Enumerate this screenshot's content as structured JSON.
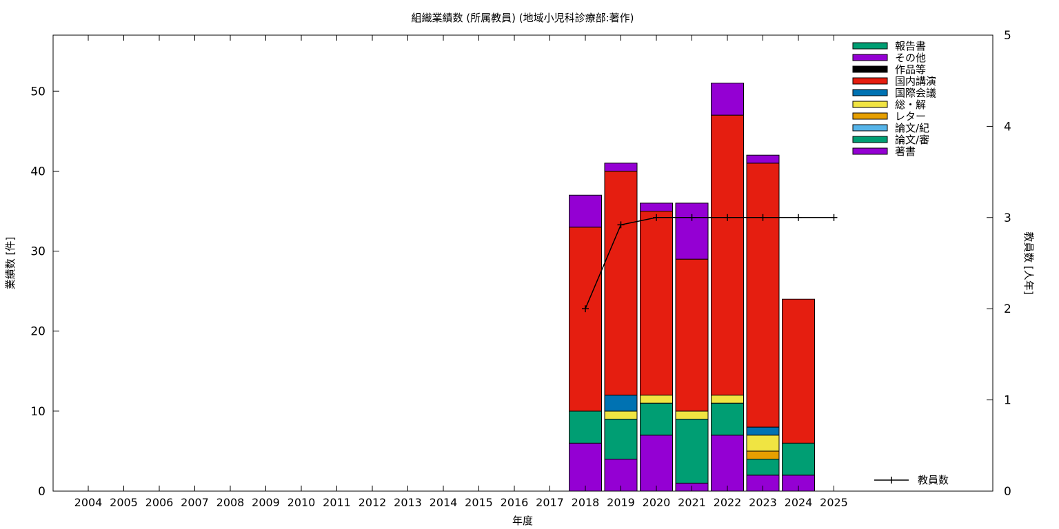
{
  "chart_data": {
    "type": "bar",
    "stacked": true,
    "title": "組織業績数 (所属教員) (地域小児科診療部:著作)",
    "xlabel": "年度",
    "ylabel": "業績数 [件]",
    "y2label": "教員数 [人年]",
    "ylim": [
      0,
      57
    ],
    "y2lim": [
      0,
      5
    ],
    "yticks": [
      0,
      10,
      20,
      30,
      40,
      50
    ],
    "y2ticks": [
      0,
      1,
      2,
      3,
      4,
      5
    ],
    "grid": false,
    "legend_position": "top-right",
    "categories": [
      "2004",
      "2005",
      "2006",
      "2007",
      "2008",
      "2009",
      "2010",
      "2011",
      "2012",
      "2013",
      "2014",
      "2015",
      "2016",
      "2017",
      "2018",
      "2019",
      "2020",
      "2021",
      "2022",
      "2023",
      "2024",
      "2025"
    ],
    "series": [
      {
        "name": "著書",
        "color": "#9400d3",
        "values": [
          0,
          0,
          0,
          0,
          0,
          0,
          0,
          0,
          0,
          0,
          0,
          0,
          0,
          0,
          6,
          4,
          7,
          1,
          7,
          2,
          2,
          0
        ]
      },
      {
        "name": "論文/審",
        "color": "#009e73",
        "values": [
          0,
          0,
          0,
          0,
          0,
          0,
          0,
          0,
          0,
          0,
          0,
          0,
          0,
          0,
          4,
          5,
          4,
          8,
          4,
          2,
          4,
          0
        ]
      },
      {
        "name": "論文/紀",
        "color": "#56b4e9",
        "values": [
          0,
          0,
          0,
          0,
          0,
          0,
          0,
          0,
          0,
          0,
          0,
          0,
          0,
          0,
          0,
          0,
          0,
          0,
          0,
          0,
          0,
          0
        ]
      },
      {
        "name": "レター",
        "color": "#e69f00",
        "values": [
          0,
          0,
          0,
          0,
          0,
          0,
          0,
          0,
          0,
          0,
          0,
          0,
          0,
          0,
          0,
          0,
          0,
          0,
          0,
          1,
          0,
          0
        ]
      },
      {
        "name": "総・解",
        "color": "#f0e442",
        "values": [
          0,
          0,
          0,
          0,
          0,
          0,
          0,
          0,
          0,
          0,
          0,
          0,
          0,
          0,
          0,
          1,
          1,
          1,
          1,
          2,
          0,
          0
        ]
      },
      {
        "name": "国際会議",
        "color": "#0072b2",
        "values": [
          0,
          0,
          0,
          0,
          0,
          0,
          0,
          0,
          0,
          0,
          0,
          0,
          0,
          0,
          0,
          2,
          0,
          0,
          0,
          1,
          0,
          0
        ]
      },
      {
        "name": "国内講演",
        "color": "#e51e10",
        "values": [
          0,
          0,
          0,
          0,
          0,
          0,
          0,
          0,
          0,
          0,
          0,
          0,
          0,
          0,
          23,
          28,
          23,
          19,
          35,
          33,
          18,
          0
        ]
      },
      {
        "name": "作品等",
        "color": "#000000",
        "values": [
          0,
          0,
          0,
          0,
          0,
          0,
          0,
          0,
          0,
          0,
          0,
          0,
          0,
          0,
          0,
          0,
          0,
          0,
          0,
          0,
          0,
          0
        ]
      },
      {
        "name": "その他",
        "color": "#9400d3",
        "values": [
          0,
          0,
          0,
          0,
          0,
          0,
          0,
          0,
          0,
          0,
          0,
          0,
          0,
          0,
          4,
          1,
          1,
          7,
          4,
          1,
          0,
          0
        ]
      },
      {
        "name": "報告書",
        "color": "#009e73",
        "values": [
          0,
          0,
          0,
          0,
          0,
          0,
          0,
          0,
          0,
          0,
          0,
          0,
          0,
          0,
          0,
          0,
          0,
          0,
          0,
          0,
          0,
          0
        ]
      }
    ],
    "line_series": {
      "name": "教員数",
      "axis": "y2",
      "color": "#000000",
      "x": [
        "2018",
        "2019",
        "2020",
        "2021",
        "2022",
        "2023",
        "2024",
        "2025"
      ],
      "values": [
        2.0,
        2.92,
        3.0,
        3.0,
        3.0,
        3.0,
        3.0,
        3.0
      ]
    }
  }
}
